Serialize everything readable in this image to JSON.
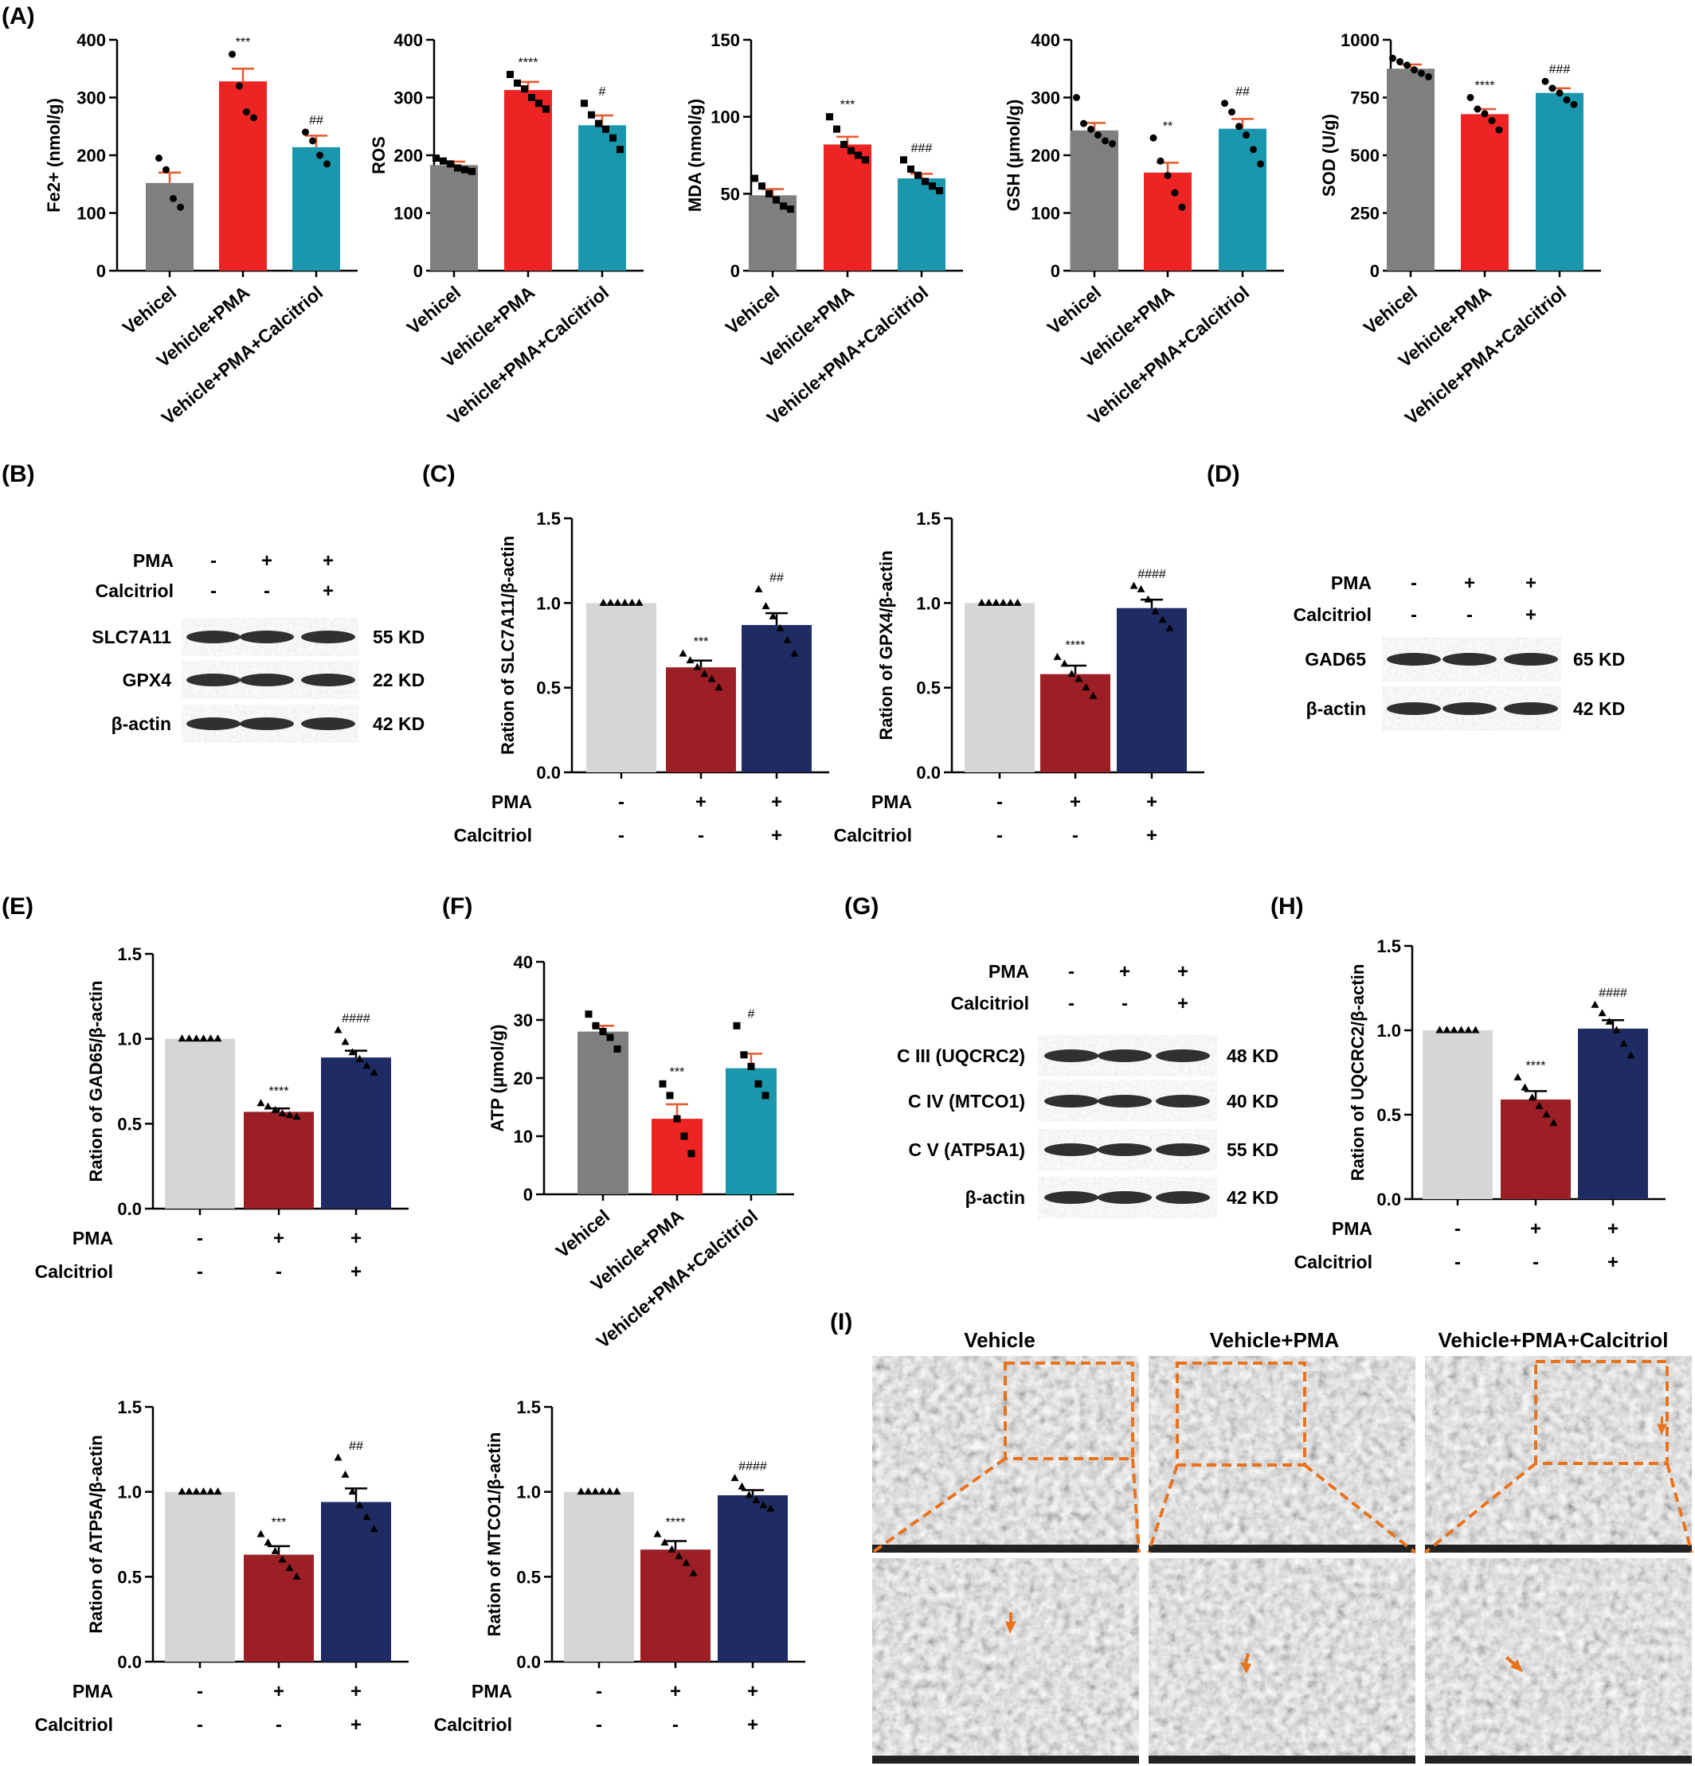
{
  "colors": {
    "gray": "#7f7f7f",
    "red": "#ee2424",
    "teal": "#1b97ad",
    "light_gray": "#d6d6d6",
    "dark_red": "#9b1f24",
    "navy": "#1f2c63",
    "err_red_panel": "#e8572c",
    "em_orange": "#e8731c"
  },
  "panel_labels": [
    "(A)",
    "(B)",
    "(C)",
    "(D)",
    "(E)",
    "(F)",
    "(G)",
    "(H)",
    "(I)"
  ],
  "chart_data": [
    {
      "id": "A1",
      "type": "bar",
      "ylabel": "Fe2+ (nmol/g)",
      "ylim": [
        0,
        400
      ],
      "yticks": [
        0,
        100,
        200,
        300,
        400
      ],
      "categories": [
        "Vehicel",
        "Vehicle+PMA",
        "Vehicle+PMA+Calcitriol"
      ],
      "values": [
        152,
        328,
        214
      ],
      "errors": [
        18,
        22,
        20
      ],
      "points": [
        [
          195,
          175,
          125,
          110
        ],
        [
          375,
          320,
          275,
          265
        ],
        [
          240,
          225,
          200,
          185
        ]
      ],
      "annotations": [
        "",
        "***",
        "##"
      ],
      "marker": "circle",
      "colors": [
        "gray",
        "red",
        "teal"
      ],
      "errcolor": "orange"
    },
    {
      "id": "A2",
      "type": "bar",
      "ylabel": "ROS",
      "ylim": [
        0,
        400
      ],
      "yticks": [
        0,
        100,
        200,
        300,
        400
      ],
      "categories": [
        "Vehicel",
        "Vehicle+PMA",
        "Vehicle+PMA+Calcitriol"
      ],
      "values": [
        183,
        313,
        252
      ],
      "errors": [
        6,
        14,
        17
      ],
      "points": [
        [
          195,
          190,
          185,
          178,
          175,
          172
        ],
        [
          340,
          325,
          315,
          300,
          290,
          280
        ],
        [
          290,
          270,
          255,
          245,
          230,
          210
        ]
      ],
      "annotations": [
        "",
        "****",
        "#"
      ],
      "marker": "square",
      "colors": [
        "gray",
        "red",
        "teal"
      ],
      "errcolor": "orange"
    },
    {
      "id": "A3",
      "type": "bar",
      "ylabel": "MDA (nmol/g)",
      "ylim": [
        0,
        150
      ],
      "yticks": [
        0,
        50,
        100,
        150
      ],
      "categories": [
        "Vehicel",
        "Vehicle+PMA",
        "Vehicle+PMA+Calcitriol"
      ],
      "values": [
        49,
        82,
        60
      ],
      "errors": [
        4,
        5,
        3
      ],
      "points": [
        [
          60,
          55,
          50,
          46,
          42,
          40
        ],
        [
          100,
          92,
          82,
          78,
          75,
          72
        ],
        [
          72,
          66,
          62,
          58,
          55,
          52
        ]
      ],
      "annotations": [
        "",
        "***",
        "###"
      ],
      "marker": "square",
      "colors": [
        "gray",
        "red",
        "teal"
      ],
      "errcolor": "orange"
    },
    {
      "id": "A4",
      "type": "bar",
      "ylabel": "GSH (μmol/g)",
      "ylim": [
        0,
        400
      ],
      "yticks": [
        0,
        100,
        200,
        300,
        400
      ],
      "categories": [
        "Vehicel",
        "Vehicle+PMA",
        "Vehicle+PMA+Calcitriol"
      ],
      "values": [
        243,
        170,
        246
      ],
      "errors": [
        13,
        17,
        17
      ],
      "points": [
        [
          300,
          255,
          245,
          235,
          225,
          220
        ],
        [
          230,
          190,
          165,
          135,
          110
        ],
        [
          290,
          275,
          250,
          235,
          210,
          185
        ]
      ],
      "annotations": [
        "",
        "**",
        "##"
      ],
      "marker": "circle",
      "colors": [
        "gray",
        "red",
        "teal"
      ],
      "errcolor": "orange"
    },
    {
      "id": "A5",
      "type": "bar",
      "ylabel": "SOD (U/g)",
      "ylim": [
        0,
        1000
      ],
      "yticks": [
        0,
        250,
        500,
        750,
        1000
      ],
      "categories": [
        "Vehicel",
        "Vehicle+PMA",
        "Vehicle+PMA+Calcitriol"
      ],
      "values": [
        875,
        678,
        770
      ],
      "errors": [
        18,
        22,
        20
      ],
      "points": [
        [
          920,
          905,
          890,
          870,
          855,
          840
        ],
        [
          750,
          700,
          680,
          650,
          610
        ],
        [
          820,
          790,
          770,
          740,
          720
        ]
      ],
      "annotations": [
        "",
        "****",
        "###"
      ],
      "marker": "circle",
      "colors": [
        "gray",
        "red",
        "teal"
      ],
      "errcolor": "orange"
    },
    {
      "id": "C1",
      "type": "bar",
      "ylabel": "Ration of SLC7A11/β-actin",
      "ylim": [
        0,
        1.5
      ],
      "yticks": [
        "0.0",
        "0.5",
        "1.0",
        "1.5"
      ],
      "condition_rows": [
        {
          "label": "PMA",
          "values": [
            "-",
            "+",
            "+"
          ]
        },
        {
          "label": "Calcitriol",
          "values": [
            "-",
            "-",
            "+"
          ]
        }
      ],
      "values": [
        1.0,
        0.62,
        0.87
      ],
      "errors": [
        0,
        0.04,
        0.07
      ],
      "points": [
        [
          1,
          1,
          1,
          1,
          1,
          1
        ],
        [
          0.7,
          0.66,
          0.62,
          0.58,
          0.55,
          0.5
        ],
        [
          1.08,
          0.98,
          0.92,
          0.85,
          0.78,
          0.7
        ]
      ],
      "annotations": [
        "",
        "***",
        "##"
      ],
      "marker": "triangle",
      "colors": [
        "light_gray",
        "dark_red",
        "navy"
      ],
      "errcolor": "black"
    },
    {
      "id": "C2",
      "type": "bar",
      "ylabel": "Ration of GPX4/β-actin",
      "ylim": [
        0,
        1.5
      ],
      "yticks": [
        "0.0",
        "0.5",
        "1.0",
        "1.5"
      ],
      "condition_rows": [
        {
          "label": "PMA",
          "values": [
            "-",
            "+",
            "+"
          ]
        },
        {
          "label": "Calcitriol",
          "values": [
            "-",
            "-",
            "+"
          ]
        }
      ],
      "values": [
        1.0,
        0.58,
        0.97
      ],
      "errors": [
        0,
        0.05,
        0.05
      ],
      "points": [
        [
          1,
          1,
          1,
          1,
          1,
          1
        ],
        [
          0.68,
          0.64,
          0.58,
          0.55,
          0.5,
          0.45
        ],
        [
          1.1,
          1.08,
          1.02,
          0.95,
          0.9,
          0.85
        ]
      ],
      "annotations": [
        "",
        "****",
        "####"
      ],
      "marker": "triangle",
      "colors": [
        "light_gray",
        "dark_red",
        "navy"
      ],
      "errcolor": "black"
    },
    {
      "id": "E1",
      "type": "bar",
      "ylabel": "Ration of GAD65/β-actin",
      "ylim": [
        0,
        1.5
      ],
      "yticks": [
        "0.0",
        "0.5",
        "1.0",
        "1.5"
      ],
      "condition_rows": [
        {
          "label": "PMA",
          "values": [
            "-",
            "+",
            "+"
          ]
        },
        {
          "label": "Calcitriol",
          "values": [
            "-",
            "-",
            "+"
          ]
        }
      ],
      "values": [
        1.0,
        0.57,
        0.89
      ],
      "errors": [
        0,
        0.02,
        0.04
      ],
      "points": [
        [
          1,
          1,
          1,
          1,
          1,
          1
        ],
        [
          0.62,
          0.6,
          0.58,
          0.56,
          0.55,
          0.54
        ],
        [
          1.05,
          0.98,
          0.92,
          0.88,
          0.84,
          0.8
        ]
      ],
      "annotations": [
        "",
        "****",
        "####"
      ],
      "marker": "triangle",
      "colors": [
        "light_gray",
        "dark_red",
        "navy"
      ],
      "errcolor": "black"
    },
    {
      "id": "E2",
      "type": "bar",
      "ylabel": "Ration of ATP5A/β-actin",
      "ylim": [
        0,
        1.5
      ],
      "yticks": [
        "0.0",
        "0.5",
        "1.0",
        "1.5"
      ],
      "condition_rows": [
        {
          "label": "PMA",
          "values": [
            "-",
            "+",
            "+"
          ]
        },
        {
          "label": "Calcitriol",
          "values": [
            "-",
            "-",
            "+"
          ]
        }
      ],
      "values": [
        1.0,
        0.63,
        0.94
      ],
      "errors": [
        0,
        0.05,
        0.08
      ],
      "points": [
        [
          1,
          1,
          1,
          1,
          1,
          1
        ],
        [
          0.75,
          0.7,
          0.65,
          0.6,
          0.55,
          0.5
        ],
        [
          1.2,
          1.1,
          1.0,
          0.92,
          0.85,
          0.78
        ]
      ],
      "annotations": [
        "",
        "***",
        "##"
      ],
      "marker": "triangle",
      "colors": [
        "light_gray",
        "dark_red",
        "navy"
      ],
      "errcolor": "black"
    },
    {
      "id": "E3",
      "type": "bar",
      "ylabel": "Ration of MTCO1/β-actin",
      "ylim": [
        0,
        1.5
      ],
      "yticks": [
        "0.0",
        "0.5",
        "1.0",
        "1.5"
      ],
      "condition_rows": [
        {
          "label": "PMA",
          "values": [
            "-",
            "+",
            "+"
          ]
        },
        {
          "label": "Calcitriol",
          "values": [
            "-",
            "-",
            "+"
          ]
        }
      ],
      "values": [
        1.0,
        0.66,
        0.98
      ],
      "errors": [
        0,
        0.05,
        0.03
      ],
      "points": [
        [
          1,
          1,
          1,
          1,
          1,
          1
        ],
        [
          0.75,
          0.7,
          0.66,
          0.62,
          0.58,
          0.52
        ],
        [
          1.08,
          1.03,
          0.98,
          0.95,
          0.92,
          0.9
        ]
      ],
      "annotations": [
        "",
        "****",
        "####"
      ],
      "marker": "triangle",
      "colors": [
        "light_gray",
        "dark_red",
        "navy"
      ],
      "errcolor": "black"
    },
    {
      "id": "F",
      "type": "bar",
      "ylabel": "ATP (μmol/g)",
      "ylim": [
        0,
        40
      ],
      "yticks": [
        0,
        10,
        20,
        30,
        40
      ],
      "categories": [
        "Vehicel",
        "Vehicle+PMA",
        "Vehicle+PMA+Calcitriol"
      ],
      "values": [
        28,
        13,
        21.7
      ],
      "errors": [
        1.0,
        2.5,
        2.5
      ],
      "points": [
        [
          31,
          29,
          28,
          27,
          25
        ],
        [
          19,
          17,
          13,
          10,
          7
        ],
        [
          29,
          24,
          22,
          19,
          17
        ]
      ],
      "annotations": [
        "",
        "***",
        "#"
      ],
      "marker": "square",
      "colors": [
        "gray",
        "red",
        "teal"
      ],
      "errcolor": "orange"
    },
    {
      "id": "H",
      "type": "bar",
      "ylabel": "Ration of UQCRC2/β-actin",
      "ylim": [
        0,
        1.5
      ],
      "yticks": [
        "0.0",
        "0.5",
        "1.0",
        "1.5"
      ],
      "condition_rows": [
        {
          "label": "PMA",
          "values": [
            "-",
            "+",
            "+"
          ]
        },
        {
          "label": "Calcitriol",
          "values": [
            "-",
            "-",
            "+"
          ]
        }
      ],
      "values": [
        1.0,
        0.59,
        1.01
      ],
      "errors": [
        0,
        0.05,
        0.05
      ],
      "points": [
        [
          1,
          1,
          1,
          1,
          1,
          1
        ],
        [
          0.72,
          0.66,
          0.6,
          0.55,
          0.5,
          0.45
        ],
        [
          1.15,
          1.1,
          1.05,
          1.0,
          0.92,
          0.85
        ]
      ],
      "annotations": [
        "",
        "****",
        "####"
      ],
      "marker": "triangle",
      "colors": [
        "light_gray",
        "dark_red",
        "navy"
      ],
      "errcolor": "black"
    }
  ],
  "blots": [
    {
      "id": "B",
      "conditions": [
        {
          "label": "PMA",
          "values": [
            "-",
            "+",
            "+"
          ]
        },
        {
          "label": "Calcitriol",
          "values": [
            "-",
            "-",
            "+"
          ]
        }
      ],
      "bands": [
        {
          "name": "SLC7A11",
          "kd": "55 KD"
        },
        {
          "name": "GPX4",
          "kd": "22 KD"
        },
        {
          "name": "β-actin",
          "kd": "42 KD"
        }
      ]
    },
    {
      "id": "D",
      "conditions": [
        {
          "label": "PMA",
          "values": [
            "-",
            "+",
            "+"
          ]
        },
        {
          "label": "Calcitriol",
          "values": [
            "-",
            "-",
            "+"
          ]
        }
      ],
      "bands": [
        {
          "name": "GAD65",
          "kd": "65 KD"
        },
        {
          "name": "β-actin",
          "kd": "42 KD"
        }
      ]
    },
    {
      "id": "G",
      "conditions": [
        {
          "label": "PMA",
          "values": [
            "-",
            "+",
            "+"
          ]
        },
        {
          "label": "Calcitriol",
          "values": [
            "-",
            "-",
            "+"
          ]
        }
      ],
      "bands": [
        {
          "name": "C III (UQCRC2)",
          "kd": "48 KD"
        },
        {
          "name": "C IV (MTCO1)",
          "kd": "40 KD"
        },
        {
          "name": "C V (ATP5A1)",
          "kd": "55 KD"
        },
        {
          "name": "β-actin",
          "kd": "42 KD"
        }
      ]
    }
  ],
  "em_panel": {
    "columns": [
      "Vehicle",
      "Vehicle+PMA",
      "Vehicle+PMA+Calcitriol"
    ]
  }
}
